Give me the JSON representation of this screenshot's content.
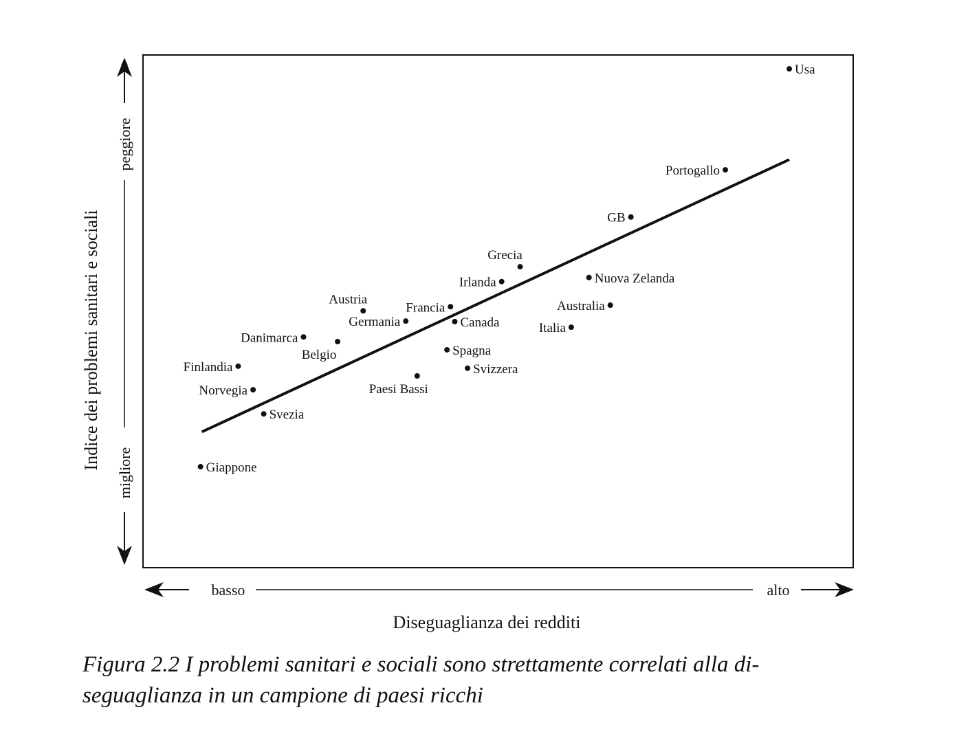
{
  "chart_data": {
    "type": "scatter",
    "title": "",
    "xlabel": "Diseguaglianza dei redditi",
    "ylabel": "Indice dei problemi sanitari e sociali",
    "x_low_label": "basso",
    "x_high_label": "alto",
    "y_low_label": "migliore",
    "y_high_label": "peggiore",
    "xlim": [
      0,
      100
    ],
    "ylim": [
      0,
      100
    ],
    "grid": false,
    "points": [
      {
        "name": "Usa",
        "x": 91.0,
        "y": 97.3,
        "label_side": "right"
      },
      {
        "name": "Portogallo",
        "x": 82.0,
        "y": 77.6,
        "label_side": "left"
      },
      {
        "name": "GB",
        "x": 68.7,
        "y": 68.4,
        "label_side": "left"
      },
      {
        "name": "Grecia",
        "x": 53.1,
        "y": 58.7,
        "label_side": "above"
      },
      {
        "name": "Irlanda",
        "x": 50.5,
        "y": 55.8,
        "label_side": "left"
      },
      {
        "name": "Nuova Zelanda",
        "x": 62.8,
        "y": 56.6,
        "label_side": "right"
      },
      {
        "name": "Australia",
        "x": 65.8,
        "y": 51.2,
        "label_side": "left"
      },
      {
        "name": "Italia",
        "x": 60.3,
        "y": 46.9,
        "label_side": "left"
      },
      {
        "name": "Francia",
        "x": 43.3,
        "y": 50.9,
        "label_side": "left"
      },
      {
        "name": "Canada",
        "x": 43.9,
        "y": 48.0,
        "label_side": "right"
      },
      {
        "name": "Austria",
        "x": 31.0,
        "y": 50.1,
        "label_side": "above"
      },
      {
        "name": "Germania",
        "x": 37.0,
        "y": 48.1,
        "label_side": "left"
      },
      {
        "name": "Danimarca",
        "x": 22.6,
        "y": 45.0,
        "label_side": "left"
      },
      {
        "name": "Belgio",
        "x": 27.4,
        "y": 44.1,
        "label_side": "below"
      },
      {
        "name": "Spagna",
        "x": 42.8,
        "y": 42.5,
        "label_side": "right"
      },
      {
        "name": "Svizzera",
        "x": 45.7,
        "y": 38.9,
        "label_side": "right"
      },
      {
        "name": "Paesi Bassi",
        "x": 38.6,
        "y": 37.4,
        "label_side": "below"
      },
      {
        "name": "Finlandia",
        "x": 13.4,
        "y": 39.3,
        "label_side": "left"
      },
      {
        "name": "Norvegia",
        "x": 15.5,
        "y": 34.7,
        "label_side": "left"
      },
      {
        "name": "Svezia",
        "x": 17.0,
        "y": 30.0,
        "label_side": "right"
      },
      {
        "name": "Giappone",
        "x": 8.1,
        "y": 19.7,
        "label_side": "right"
      }
    ],
    "trend_line": {
      "x": [
        8.3,
        91.0
      ],
      "y": [
        26.5,
        79.6
      ]
    }
  },
  "caption": {
    "line1": "Figura 2.2 I problemi sanitari e sociali sono strettamente correlati alla di-",
    "line2": "seguaglianza in un campione di paesi ricchi"
  }
}
